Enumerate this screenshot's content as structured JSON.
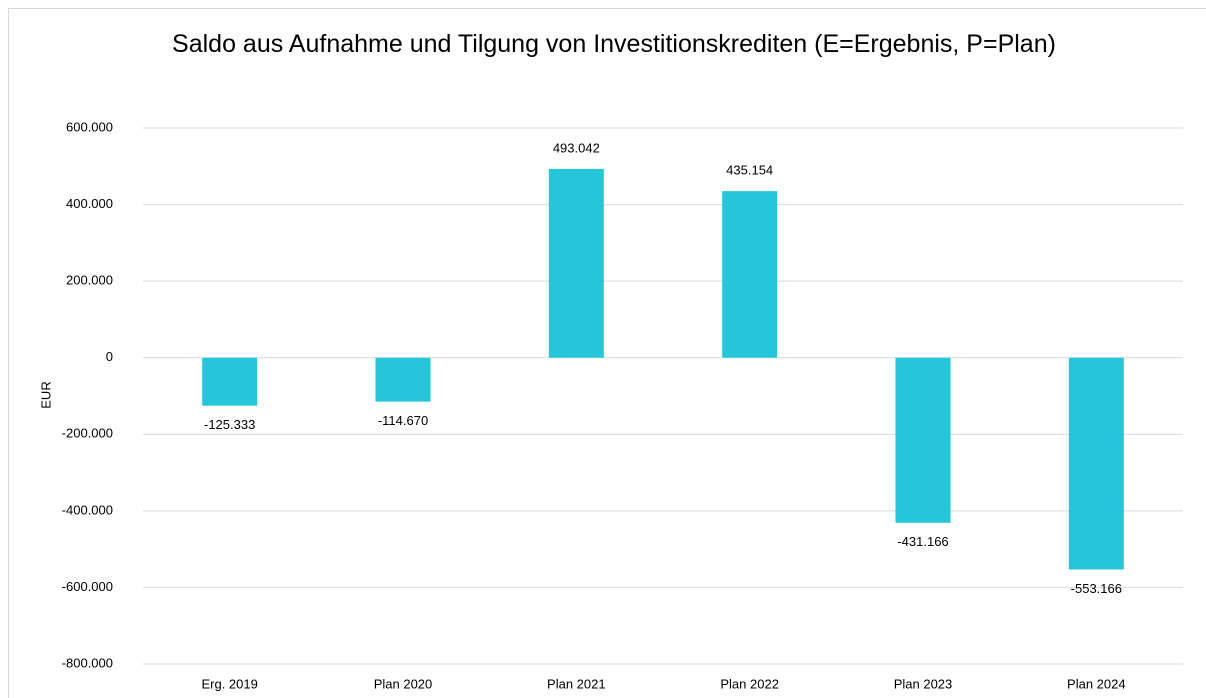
{
  "chart_data": {
    "type": "bar",
    "title": "Saldo aus Aufnahme und Tilgung von Investitionskrediten (E=Ergebnis, P=Plan)",
    "y_label": "EUR",
    "categories": [
      "Erg. 2019",
      "Plan 2020",
      "Plan 2021",
      "Plan 2022",
      "Plan 2023",
      "Plan 2024"
    ],
    "values": [
      -125333,
      -114670,
      493042,
      435154,
      -431166,
      -553166
    ],
    "value_labels": [
      "-125.333",
      "-114.670",
      "493.042",
      "435.154",
      "-431.166",
      "-553.166"
    ],
    "color": "#26c6da",
    "ylim": [
      -800000,
      600000
    ],
    "yticks": [
      {
        "value": -800000,
        "label": "-800.000"
      },
      {
        "value": -600000,
        "label": "-600.000"
      },
      {
        "value": -400000,
        "label": "-400.000"
      },
      {
        "value": -200000,
        "label": "-200.000"
      },
      0,
      {
        "value": 200000,
        "label": "200.000"
      },
      {
        "value": 400000,
        "label": "400.000"
      },
      {
        "value": 600000,
        "label": "600.000"
      }
    ],
    "grid": true
  }
}
